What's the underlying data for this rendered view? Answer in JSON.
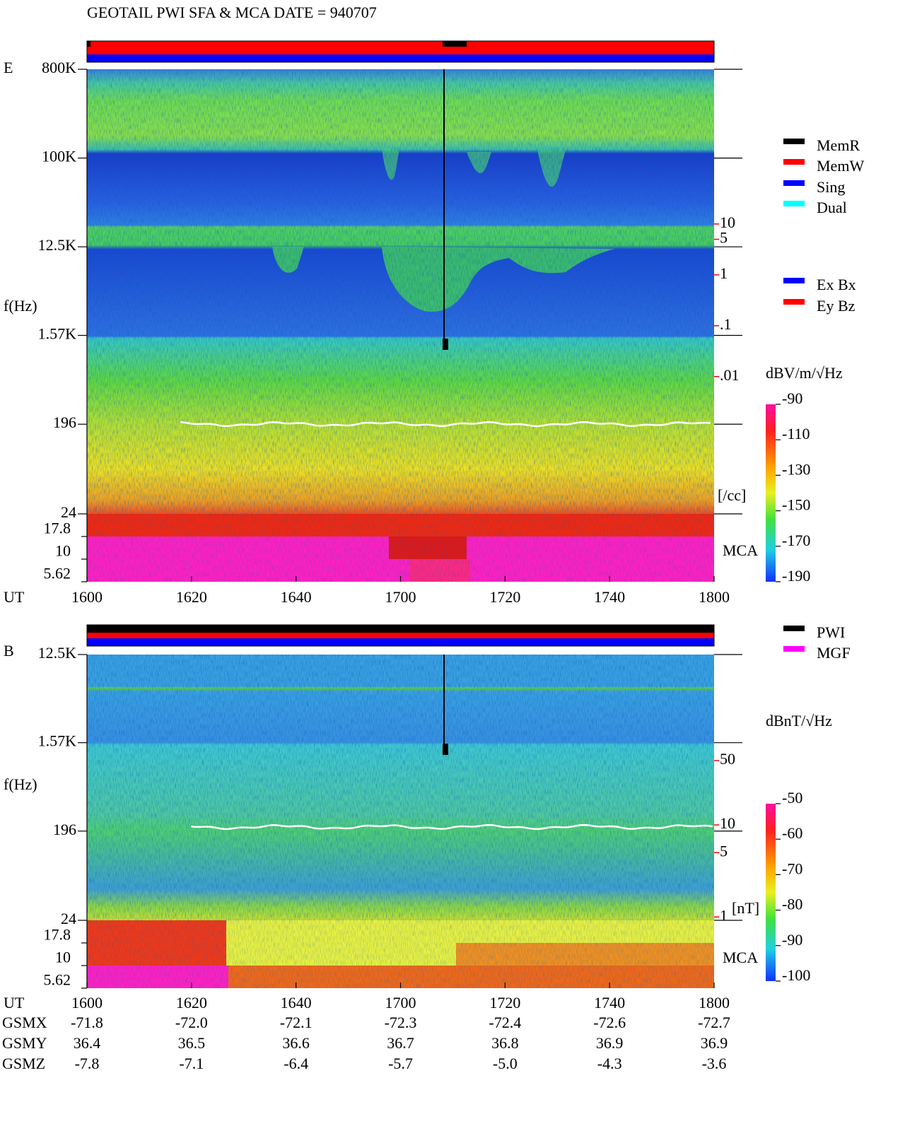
{
  "chart_data": [
    {
      "type": "spectrogram",
      "title": "GEOTAIL  PWI SFA & MCA   DATE = 940707",
      "panel": "E",
      "ylabel": "f(Hz)",
      "yscale": "log",
      "ylim": [
        24,
        800000
      ],
      "yticks": [
        {
          "value": 800000,
          "label": "800K"
        },
        {
          "value": 100000,
          "label": "100K"
        },
        {
          "value": 12500,
          "label": "12.5K"
        },
        {
          "value": 1570,
          "label": "1.57K"
        },
        196,
        24
      ],
      "mca_label": "MCA",
      "mca_channels": [
        "17.8",
        "10",
        "5.62"
      ],
      "xlabel": "UT",
      "x": [
        "1600",
        "1620",
        "1640",
        "1700",
        "1720",
        "1740",
        "1800"
      ],
      "density": {
        "unit": "[/cc]",
        "color": "#ff0000",
        "yscale": "log",
        "ylim": [
          2e-05,
          11000
        ],
        "yticks": [
          10,
          5,
          1,
          {
            "value": 0.1,
            "label": ".1"
          },
          {
            "value": 0.01,
            "label": ".01"
          }
        ]
      },
      "colorbar": {
        "label": "dBV/m/√Hz",
        "ylim": [
          -190,
          -90
        ],
        "ticks": [
          -90,
          -110,
          -130,
          -150,
          -170,
          -190
        ]
      },
      "legends": [
        [
          {
            "name": "MemR",
            "color": "#000000"
          },
          {
            "name": "MemW",
            "color": "#ff0000"
          },
          {
            "name": "Sing",
            "color": "#0000ff"
          },
          {
            "name": "Dual",
            "color": "#00ffff"
          }
        ],
        [
          {
            "name": "Ex Bx",
            "color": "#0000ff"
          },
          {
            "name": "Ey Bz",
            "color": "#ff0000"
          }
        ]
      ]
    },
    {
      "type": "spectrogram",
      "panel": "B",
      "ylabel": "f(Hz)",
      "yscale": "log",
      "ylim": [
        24,
        12500
      ],
      "yticks": [
        {
          "value": 12500,
          "label": "12.5K"
        },
        {
          "value": 1570,
          "label": "1.57K"
        },
        196,
        24
      ],
      "mca_label": "MCA",
      "mca_channels": [
        "17.8",
        "10",
        "5.62"
      ],
      "xlabel": "UT",
      "x": [
        "1600",
        "1620",
        "1640",
        "1700",
        "1720",
        "1740",
        "1800"
      ],
      "density": {
        "unit": "[nT]",
        "color": "#ff0000",
        "yscale": "log",
        "ylim": [
          0.92,
          710
        ],
        "yticks": [
          50,
          10,
          5,
          1
        ]
      },
      "colorbar": {
        "label": "dBnT/√Hz",
        "ylim": [
          -100,
          -50
        ],
        "ticks": [
          -50,
          -60,
          -70,
          -80,
          -90,
          -100
        ]
      },
      "legends": [
        [
          {
            "name": "PWI",
            "color": "#000000"
          },
          {
            "name": "MGF",
            "color": "#ff00ff"
          }
        ]
      ],
      "orbit": [
        {
          "name": "GSMX",
          "values": [
            -71.8,
            -72.0,
            -72.1,
            -72.3,
            -72.4,
            -72.6,
            -72.7
          ],
          "value_labels": [
            "-71.8",
            "-72.0",
            "-72.1",
            "-72.3",
            "-72.4",
            "-72.6",
            "-72.7"
          ]
        },
        {
          "name": "GSMY",
          "values": [
            36.4,
            36.5,
            36.6,
            36.7,
            36.8,
            36.9,
            36.9
          ],
          "value_labels": [
            "36.4",
            "36.5",
            "36.6",
            "36.7",
            "36.8",
            "36.9",
            "36.9"
          ]
        },
        {
          "name": "GSMZ",
          "values": [
            -7.8,
            -7.1,
            -6.4,
            -5.7,
            -5.0,
            -4.3,
            -3.6
          ],
          "value_labels": [
            "-7.8",
            "-7.1",
            "-6.4",
            "-5.7",
            "-5.0",
            "-4.3",
            "-3.6"
          ]
        }
      ]
    }
  ]
}
